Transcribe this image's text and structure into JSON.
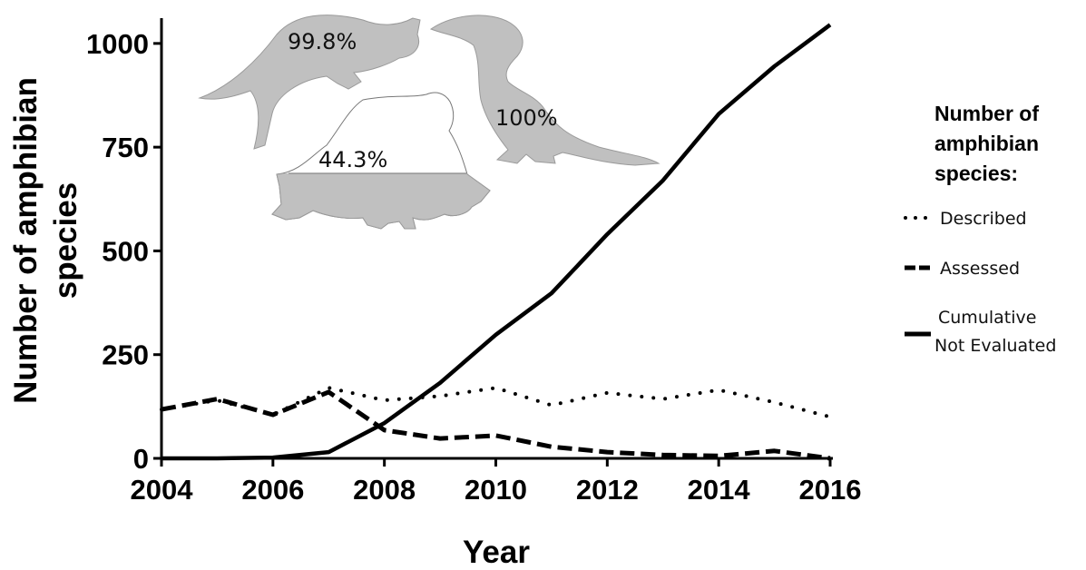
{
  "chart_data": {
    "type": "line",
    "x": [
      2004,
      2005,
      2006,
      2007,
      2008,
      2009,
      2010,
      2011,
      2012,
      2013,
      2014,
      2015,
      2016
    ],
    "xlabel": "Year",
    "ylabel_lines": [
      "Number of amphibian",
      "species"
    ],
    "xlim": [
      2004,
      2016
    ],
    "ylim": [
      0,
      1050
    ],
    "xticks": [
      "2004",
      "2006",
      "2008",
      "2010",
      "2012",
      "2014",
      "2016"
    ],
    "yticks": [
      "0",
      "250",
      "500",
      "750",
      "1000"
    ],
    "grid": false,
    "legend": {
      "placement": "right",
      "title_lines": [
        "Number of",
        "amphibian",
        "species:"
      ]
    },
    "series": [
      {
        "name": "Described",
        "style": "dotted",
        "x": [
          2004,
          2005,
          2006,
          2007,
          2008,
          2009,
          2010,
          2011,
          2012,
          2013,
          2014,
          2015,
          2016
        ],
        "values": [
          118,
          140,
          105,
          170,
          140,
          150,
          170,
          128,
          158,
          143,
          165,
          135,
          100
        ]
      },
      {
        "name": "Assessed",
        "style": "dashed",
        "x": [
          2004,
          2005,
          2006,
          2007,
          2008,
          2009,
          2010,
          2011,
          2012,
          2013,
          2014,
          2015,
          2016
        ],
        "values": [
          118,
          143,
          105,
          160,
          68,
          48,
          55,
          28,
          15,
          8,
          6,
          18,
          0
        ]
      },
      {
        "name_lines": [
          "Cumulative",
          "Not Evaluated"
        ],
        "style": "solid",
        "x": [
          2004,
          2005,
          2006,
          2007,
          2008,
          2009,
          2010,
          2011,
          2012,
          2013,
          2014,
          2015,
          2016
        ],
        "values": [
          0,
          0,
          2,
          15,
          85,
          182,
          298,
          398,
          540,
          670,
          830,
          945,
          1045
        ]
      }
    ],
    "annotations": [
      {
        "text": "99.8%",
        "silhouette": "caecilian-like-amphibian",
        "fill_fraction": 0.998
      },
      {
        "text": "100%",
        "silhouette": "salamander",
        "fill_fraction": 1.0
      },
      {
        "text": "44.3%",
        "silhouette": "frog",
        "fill_fraction": 0.443
      }
    ]
  },
  "colors": {
    "line": "#000000",
    "silhouette": "#c0c0c0",
    "silhouette_outline": "#888888"
  }
}
